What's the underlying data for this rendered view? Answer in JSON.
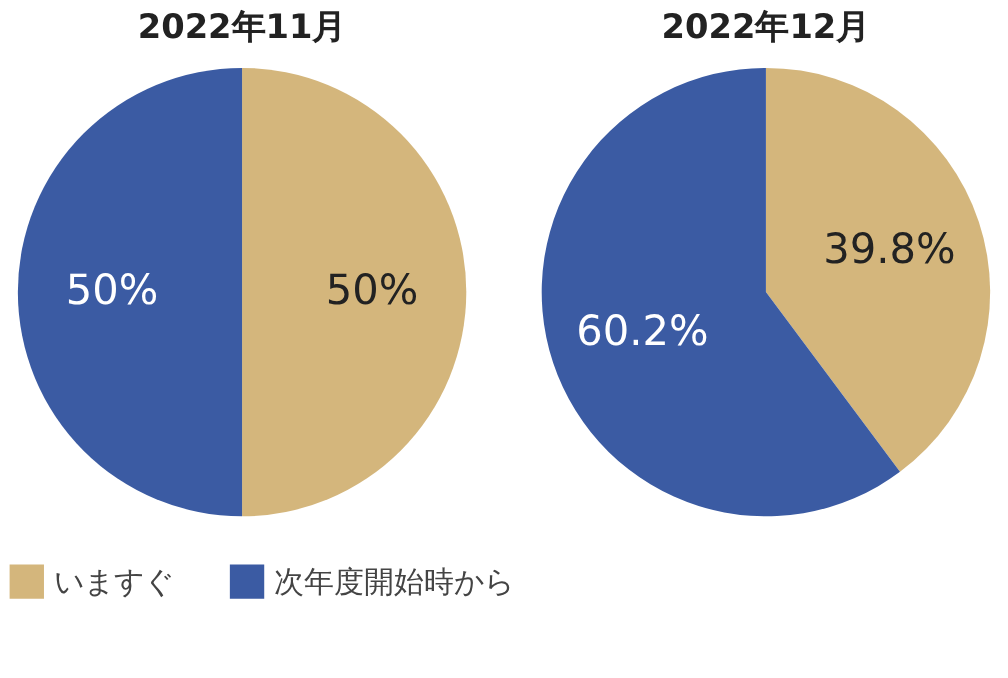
{
  "chart_data": [
    {
      "type": "pie",
      "title": "2022年11月",
      "categories": [
        "いますぐ",
        "次年度開始時から"
      ],
      "values": [
        50,
        50
      ],
      "colors": [
        "#d4b67c",
        "#3b5ba3"
      ],
      "value_labels": [
        "50%",
        "50%"
      ],
      "legend": "bottom"
    },
    {
      "type": "pie",
      "title": "2022年12月",
      "categories": [
        null,
        null
      ],
      "values": [
        39.8,
        60.2
      ],
      "colors": [
        "#d4b67c",
        "#3b5ba3"
      ],
      "value_labels": [
        "39.8%",
        "60.2%"
      ]
    }
  ]
}
